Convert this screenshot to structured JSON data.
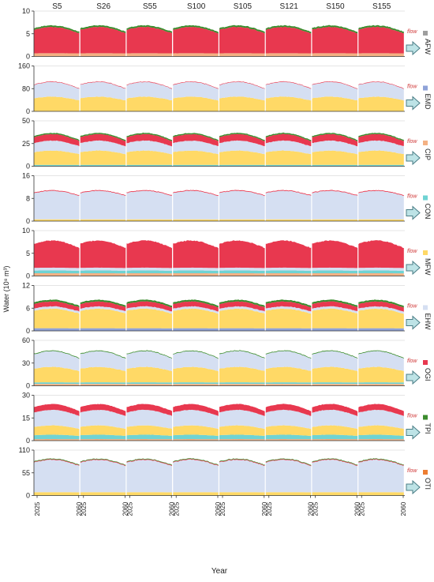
{
  "chart_data": {
    "type": "area",
    "ylabel": "Water (10⁸ m³)",
    "xlabel": "Year",
    "flow_label": "flow",
    "scenarios": [
      "S5",
      "S26",
      "S55",
      "S100",
      "S105",
      "S121",
      "S150",
      "S155"
    ],
    "year_range": [
      2025,
      2060
    ],
    "x_tick_labels": [
      "2025",
      "2060"
    ],
    "legend_colors": {
      "AFW": "#9e9e9e",
      "EMD": "#8fa2d8",
      "CIP": "#f4b183",
      "CON": "#6fd3d3",
      "MFW": "#ffd966",
      "EHW": "#d5dff2",
      "OGI": "#e8384f",
      "TPI": "#3c8c2e",
      "OTI": "#ed7d31"
    },
    "panels": [
      {
        "category": "AFW",
        "ymax": 10,
        "ticks": [
          0,
          5,
          10
        ],
        "layers": [
          {
            "name": "CIP",
            "color": "#f4b183",
            "value": 0.7
          },
          {
            "name": "OGI",
            "color": "#e8384f",
            "value": 5.2,
            "amp": 0.28
          },
          {
            "name": "TPI",
            "color": "#3c8c2e",
            "value": 0.35
          }
        ]
      },
      {
        "category": "EMD",
        "ymax": 160,
        "ticks": [
          0,
          80,
          160
        ],
        "layers": [
          {
            "name": "MFW",
            "color": "#ffd966",
            "value": 46,
            "amp": 0.32
          },
          {
            "name": "EHW",
            "color": "#d5dff2",
            "value": 47,
            "amp": 0.25
          },
          {
            "name": "OGI",
            "color": "#e8384f",
            "value": 1.8
          }
        ]
      },
      {
        "category": "CIP",
        "ymax": 50,
        "ticks": [
          0,
          25,
          50
        ],
        "layers": [
          {
            "name": "CON",
            "color": "#6fd3d3",
            "value": 1.5
          },
          {
            "name": "MFW",
            "color": "#ffd966",
            "value": 14,
            "amp": 0.3
          },
          {
            "name": "EHW",
            "color": "#d5dff2",
            "value": 10,
            "amp": 0.25
          },
          {
            "name": "OGI",
            "color": "#e8384f",
            "value": 6.5,
            "amp": 0.25
          },
          {
            "name": "TPI",
            "color": "#3c8c2e",
            "value": 1.3
          }
        ]
      },
      {
        "category": "CON",
        "ymax": 16,
        "ticks": [
          0,
          8,
          16
        ],
        "layers": [
          {
            "name": "MFW",
            "color": "#ffd966",
            "value": 0.6
          },
          {
            "name": "EHW",
            "color": "#d5dff2",
            "value": 9.3,
            "amp": 0.2
          },
          {
            "name": "OGI",
            "color": "#e8384f",
            "value": 0.25
          }
        ]
      },
      {
        "category": "MFW",
        "ymax": 10,
        "ticks": [
          0,
          5,
          10
        ],
        "layers": [
          {
            "name": "CIP",
            "color": "#f4b183",
            "value": 0.6
          },
          {
            "name": "CON",
            "color": "#6fd3d3",
            "value": 0.6
          },
          {
            "name": "EHW",
            "color": "#d5dff2",
            "value": 0.6
          },
          {
            "name": "OGI",
            "color": "#e8384f",
            "value": 5.3,
            "amp": 0.32
          }
        ]
      },
      {
        "category": "EHW",
        "ymax": 12,
        "ticks": [
          0,
          6,
          12
        ],
        "layers": [
          {
            "name": "EMD",
            "color": "#8fa2d8",
            "value": 0.7
          },
          {
            "name": "MFW",
            "color": "#ffd966",
            "value": 4.6,
            "amp": 0.3
          },
          {
            "name": "EHW",
            "color": "#d5dff2",
            "value": 0.6
          },
          {
            "name": "OGI",
            "color": "#e8384f",
            "value": 1.2,
            "amp": 0.2
          },
          {
            "name": "TPI",
            "color": "#3c8c2e",
            "value": 0.45
          }
        ]
      },
      {
        "category": "OGI",
        "ymax": 60,
        "ticks": [
          0,
          30,
          60
        ],
        "layers": [
          {
            "name": "CIP",
            "color": "#f4b183",
            "value": 2.5
          },
          {
            "name": "CON",
            "color": "#6fd3d3",
            "value": 2
          },
          {
            "name": "MFW",
            "color": "#ffd966",
            "value": 18,
            "amp": 0.32
          },
          {
            "name": "EHW",
            "color": "#d5dff2",
            "value": 19,
            "amp": 0.25
          },
          {
            "name": "TPI",
            "color": "#3c8c2e",
            "value": 0.9
          }
        ]
      },
      {
        "category": "TPI",
        "ymax": 30,
        "ticks": [
          0,
          15,
          30
        ],
        "layers": [
          {
            "name": "CIP",
            "color": "#f4b183",
            "value": 1
          },
          {
            "name": "CON",
            "color": "#6fd3d3",
            "value": 2.6,
            "amp": 0.3
          },
          {
            "name": "MFW",
            "color": "#ffd966",
            "value": 5.5,
            "amp": 0.3
          },
          {
            "name": "EHW",
            "color": "#d5dff2",
            "value": 9.5,
            "amp": 0.2
          },
          {
            "name": "OGI",
            "color": "#e8384f",
            "value": 3.6,
            "amp": 0.2
          }
        ]
      },
      {
        "category": "OTI",
        "ymax": 110,
        "ticks": [
          0,
          55,
          110
        ],
        "layers": [
          {
            "name": "MFW",
            "color": "#ffd966",
            "value": 8
          },
          {
            "name": "EHW",
            "color": "#d5dff2",
            "value": 72,
            "amp": 0.22
          },
          {
            "name": "OGI",
            "color": "#e8384f",
            "value": 1.5
          },
          {
            "name": "TPI",
            "color": "#3c8c2e",
            "value": 1.5
          }
        ]
      }
    ]
  }
}
